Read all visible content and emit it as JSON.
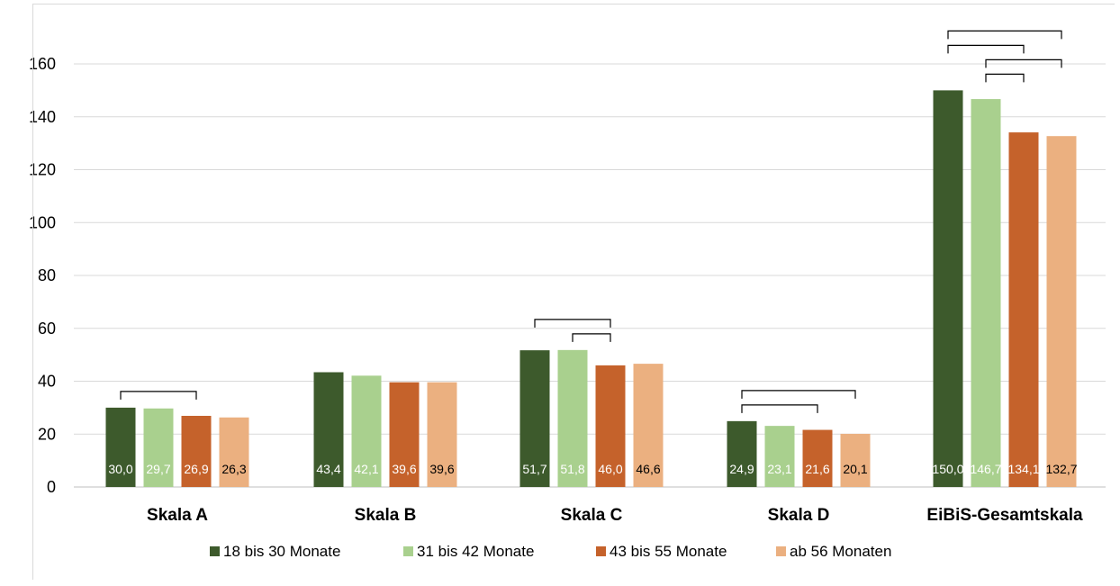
{
  "chart_data": {
    "type": "bar",
    "title": "",
    "xlabel": "",
    "ylabel": "",
    "ylim": [
      0,
      160
    ],
    "yticks": [
      "0",
      "20",
      "40",
      "60",
      "80",
      "100",
      "120",
      "140",
      "160"
    ],
    "grid": true,
    "legend_position": "bottom",
    "categories": [
      "Skala A",
      "Skala B",
      "Skala C",
      "Skala D",
      "EiBiS-Gesamtskala"
    ],
    "series": [
      {
        "name": "18 bis 30 Monate",
        "color": "#3d5a2c",
        "label_color": "#ffffff",
        "values": [
          30.0,
          43.4,
          51.7,
          24.9,
          150.0
        ],
        "labels": [
          "30,0",
          "43,4",
          "51,7",
          "24,9",
          "150,0"
        ]
      },
      {
        "name": "31 bis 42 Monate",
        "color": "#a9d08e",
        "label_color": "#ffffff",
        "values": [
          29.7,
          42.1,
          51.8,
          23.1,
          146.7
        ],
        "labels": [
          "29,7",
          "42,1",
          "51,8",
          "23,1",
          "146,7"
        ]
      },
      {
        "name": "43 bis 55 Monate",
        "color": "#c5622b",
        "label_color": "#ffffff",
        "values": [
          26.9,
          39.6,
          46.0,
          21.6,
          134.1
        ],
        "labels": [
          "26,9",
          "39,6",
          "46,0",
          "21,6",
          "134,1"
        ]
      },
      {
        "name": "ab 56 Monaten",
        "color": "#ebb080",
        "label_color": "#000000",
        "values": [
          26.3,
          39.6,
          46.6,
          20.1,
          132.7
        ],
        "labels": [
          "26,3",
          "39,6",
          "46,6",
          "20,1",
          "132,7"
        ]
      }
    ],
    "significance_brackets": [
      {
        "category": 0,
        "from_series": 0,
        "to_series": 2
      },
      {
        "category": 2,
        "from_series": 0,
        "to_series": 2
      },
      {
        "category": 2,
        "from_series": 1,
        "to_series": 2
      },
      {
        "category": 3,
        "from_series": 0,
        "to_series": 3
      },
      {
        "category": 3,
        "from_series": 0,
        "to_series": 2
      },
      {
        "category": 4,
        "from_series": 0,
        "to_series": 3
      },
      {
        "category": 4,
        "from_series": 0,
        "to_series": 2
      },
      {
        "category": 4,
        "from_series": 1,
        "to_series": 3
      },
      {
        "category": 4,
        "from_series": 1,
        "to_series": 2
      }
    ]
  }
}
